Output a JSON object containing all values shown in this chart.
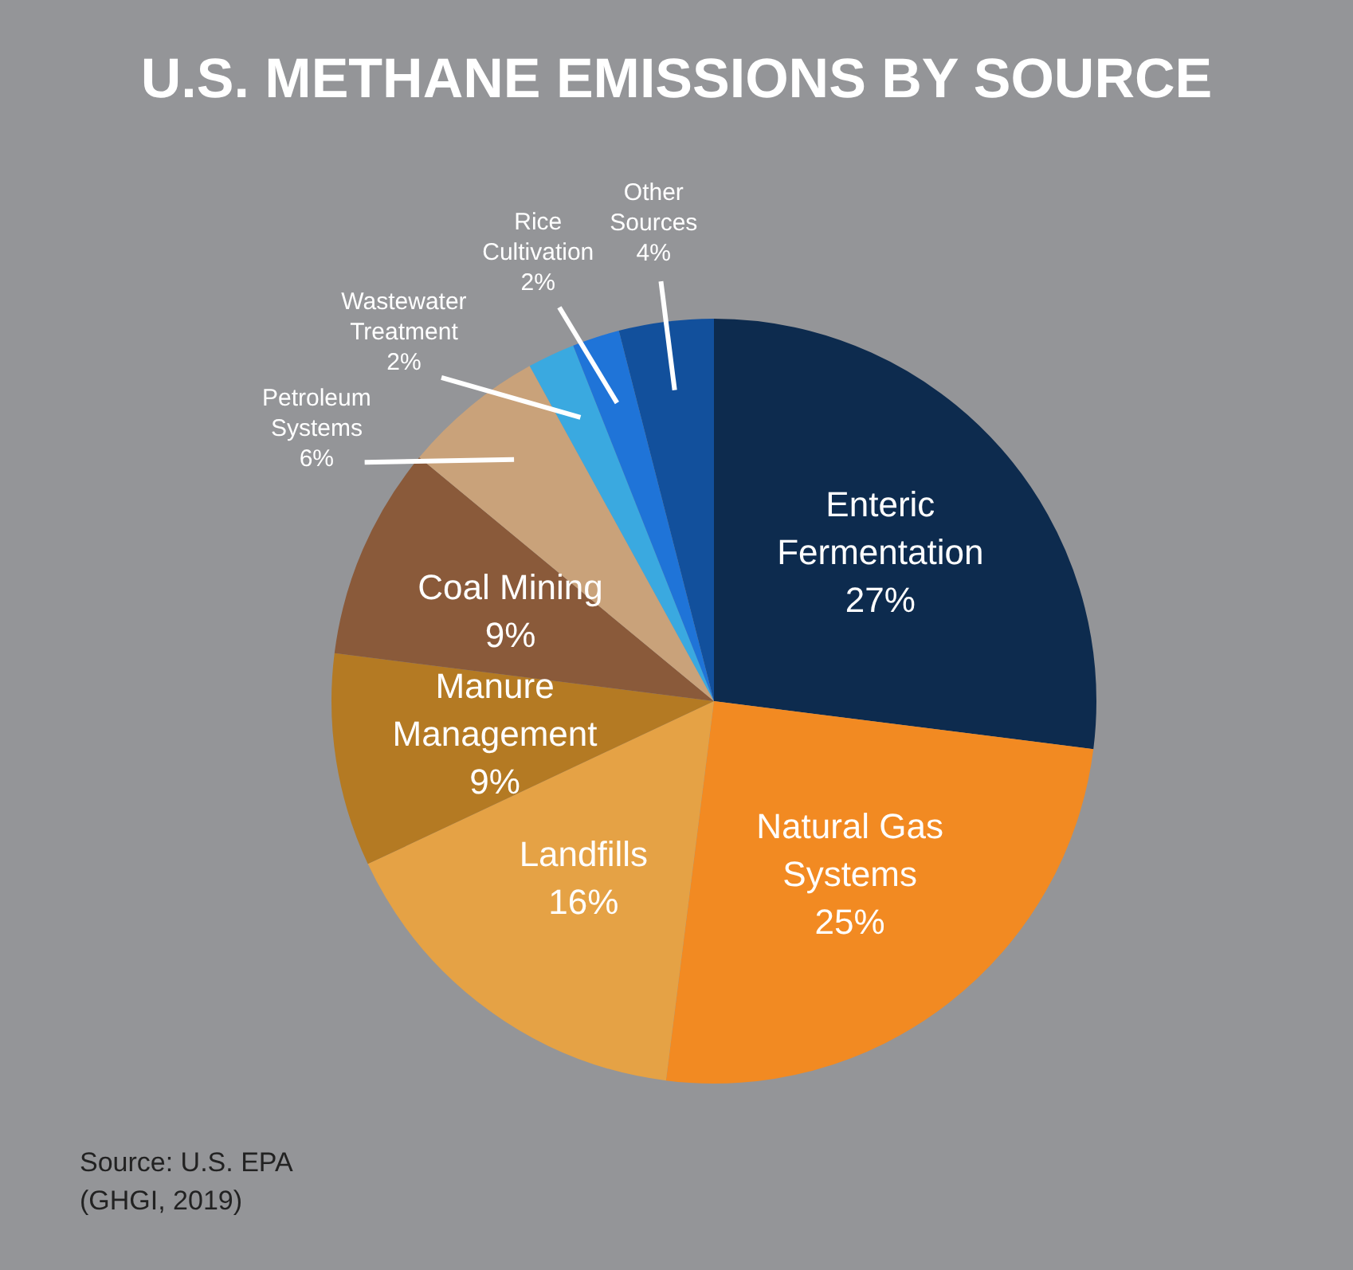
{
  "chart_data": {
    "type": "pie",
    "title": "U.S. METHANE EMISSIONS BY SOURCE",
    "categories": [
      "Enteric Fermentation",
      "Natural Gas Systems",
      "Landfills",
      "Manure Management",
      "Coal Mining",
      "Petroleum Systems",
      "Wastewater Treatment",
      "Rice Cultivation",
      "Other Sources"
    ],
    "values": [
      27,
      25,
      16,
      9,
      9,
      6,
      2,
      2,
      4
    ],
    "value_labels": [
      "27%",
      "25%",
      "16%",
      "9%",
      "9%",
      "6%",
      "2%",
      "2%",
      "4%"
    ],
    "colors": [
      "#0d2b4e",
      "#f28a22",
      "#e5a245",
      "#b47a23",
      "#8a5a3a",
      "#c9a27a",
      "#3aa9e0",
      "#1f74d8",
      "#12509c"
    ],
    "legend": false,
    "annotations": [
      "Source: U.S. EPA\n(GHGI, 2019)"
    ]
  }
}
